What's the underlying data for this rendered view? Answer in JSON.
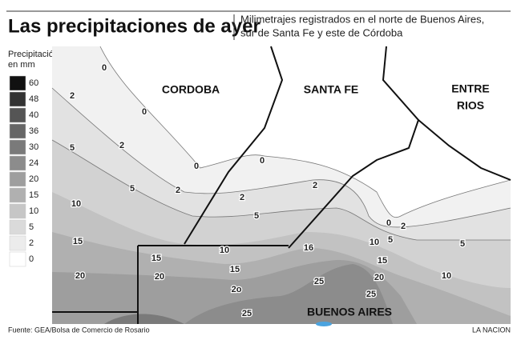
{
  "header": {
    "title": "Las precipitaciones de ayer",
    "subtitle_lines": [
      "Milimetrajes registrados en el norte de Buenos Aires,",
      "sur de Santa Fe y este de Córdoba"
    ]
  },
  "legend": {
    "title_lines": [
      "Precipitación",
      "en mm"
    ],
    "values": [
      60,
      48,
      40,
      36,
      30,
      24,
      20,
      15,
      10,
      5,
      2,
      0
    ]
  },
  "map": {
    "regions": [
      "CORDOBA",
      "SANTA FE",
      "ENTRE",
      "RIOS",
      "BUENOS AIRES"
    ],
    "contour_labels": [
      "0",
      "2",
      "0",
      "2",
      "5",
      "0",
      "5",
      "2",
      "0",
      "2",
      "2",
      "5",
      "10",
      "15",
      "10",
      "15",
      "16",
      "10",
      "5",
      "0",
      "2",
      "5",
      "15",
      "20",
      "20",
      "15",
      "20",
      "10",
      "2o",
      "25",
      "25",
      "25"
    ]
  },
  "footer": {
    "source": "Fuente: GEA/Bolsa de Comercio de Rosario",
    "brand": "LA NACION"
  }
}
